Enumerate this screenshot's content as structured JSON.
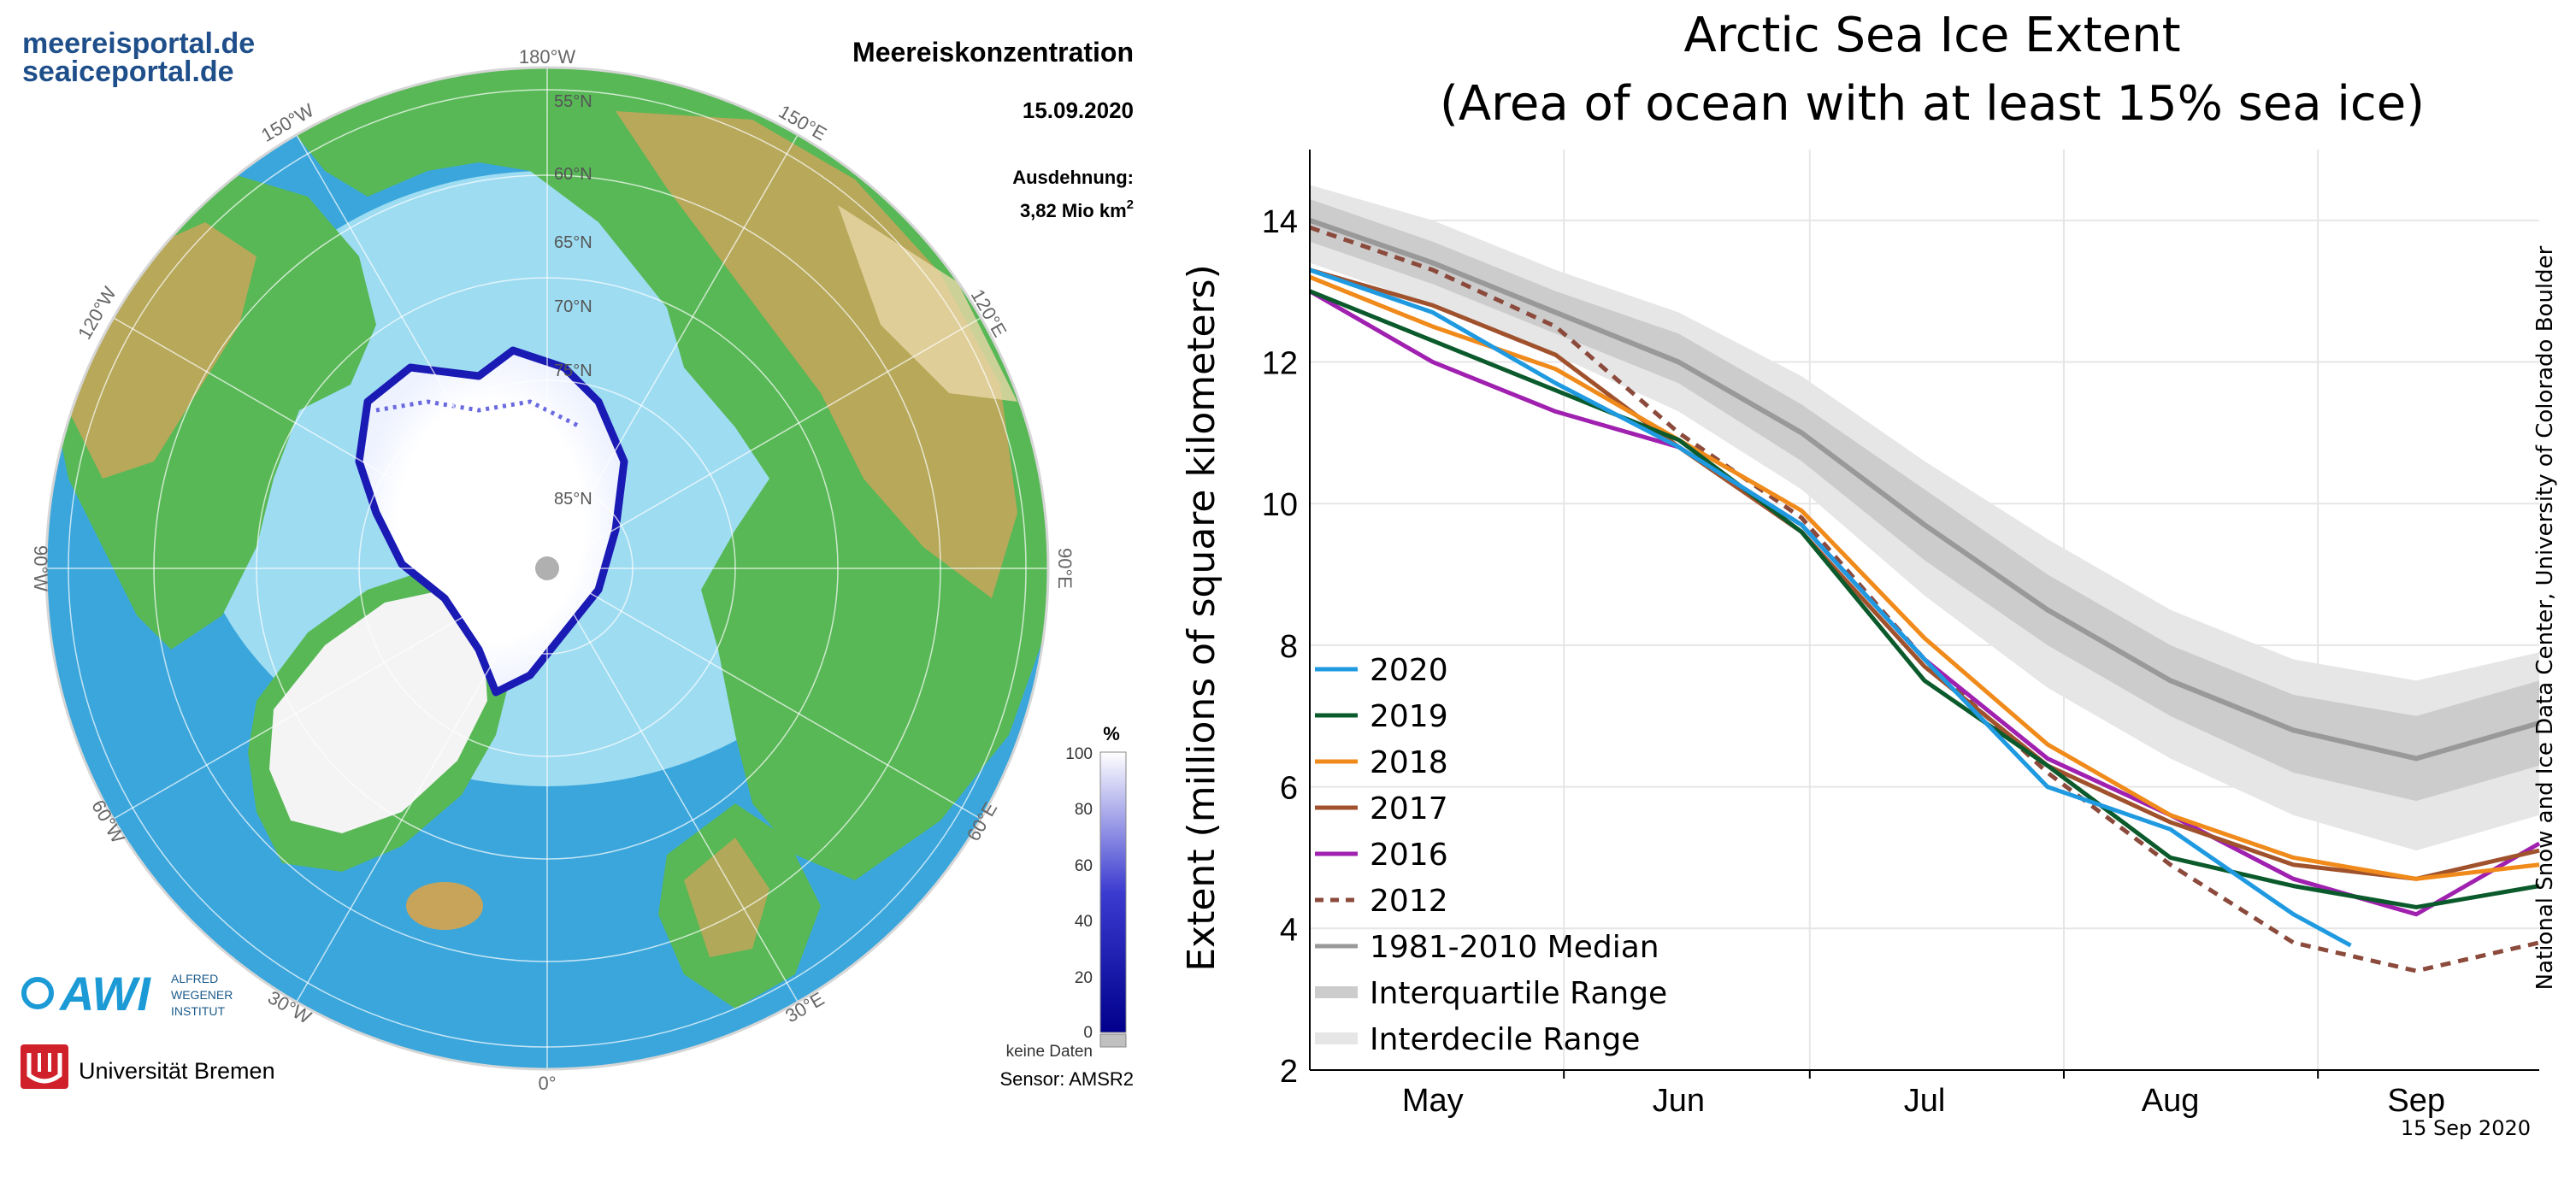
{
  "map": {
    "portal_line1": "meereisportal.de",
    "portal_line2": "seaiceportal.de",
    "title": "Meereiskonzentration",
    "date": "15.09.2020",
    "extent_label": "Ausdehnung:",
    "extent_value": "3,82 Mio km",
    "extent_unit_sup": "2",
    "longitudes": [
      "180°W",
      "150°E",
      "120°E",
      "90°E",
      "60°E",
      "30°E",
      "0°",
      "30°W",
      "60°W",
      "90°W",
      "120°W",
      "150°W"
    ],
    "latitudes": [
      "55°N",
      "60°N",
      "65°N",
      "70°N",
      "75°N",
      "85°N"
    ],
    "colorbar": {
      "unit": "%",
      "ticks": [
        "100",
        "80",
        "60",
        "40",
        "20",
        "0"
      ],
      "no_data": "keine Daten",
      "color_top": "#ffffff",
      "color_bottom": "#00008c"
    },
    "awi_lines": [
      "ALFRED",
      "WEGENER",
      "INSTITUT"
    ],
    "uni": "Universität Bremen",
    "sensor": "Sensor: AMSR2",
    "colors": {
      "ocean_deep": "#3aa6dc",
      "ocean_shelf": "#9edcf2",
      "land_low": "#58b856",
      "land_high": "#c8a45a",
      "ice": "#ffffff",
      "ice_edge": "#1a1ab4"
    }
  },
  "chart_data": {
    "type": "line",
    "title_line1": "Arctic Sea Ice Extent",
    "title_line2": "(Area of ocean with at least 15% sea ice)",
    "ylabel": "Extent (millions of square kilometers)",
    "ylim": [
      2,
      15
    ],
    "yticks": [
      2,
      4,
      6,
      8,
      10,
      12,
      14
    ],
    "ytick_labels": [
      "2",
      "4",
      "6",
      "8",
      "10",
      "12",
      "14"
    ],
    "xlim": [
      0,
      150
    ],
    "month_labels": [
      "May",
      "Jun",
      "Jul",
      "Aug",
      "Sep"
    ],
    "month_label_pos": [
      15,
      45,
      75,
      105,
      135
    ],
    "month_boundaries": [
      31,
      61,
      92,
      123
    ],
    "date_note": "15 Sep 2020",
    "source": "National Snow and Ice Data Center, University of Colorado Boulder",
    "x": [
      0,
      15,
      30,
      45,
      60,
      75,
      90,
      105,
      120,
      135,
      150
    ],
    "series": [
      {
        "name": "2020",
        "color": "#1f9ae0",
        "dash": false,
        "values": [
          13.3,
          12.7,
          11.7,
          10.8,
          9.7,
          7.8,
          6.0,
          5.4,
          4.2,
          null,
          null
        ],
        "last": {
          "x": 127,
          "y": 3.76
        }
      },
      {
        "name": "2019",
        "color": "#0b5a2c",
        "dash": false,
        "values": [
          13.0,
          12.3,
          11.6,
          10.9,
          9.6,
          7.5,
          6.3,
          5.0,
          4.6,
          4.3,
          4.6
        ]
      },
      {
        "name": "2018",
        "color": "#f08a1a",
        "dash": false,
        "values": [
          13.2,
          12.5,
          11.9,
          10.9,
          9.9,
          8.1,
          6.6,
          5.6,
          5.0,
          4.7,
          4.9
        ]
      },
      {
        "name": "2017",
        "color": "#a0522d",
        "dash": false,
        "values": [
          13.3,
          12.8,
          12.1,
          10.8,
          9.6,
          7.7,
          6.3,
          5.5,
          4.9,
          4.7,
          5.1
        ]
      },
      {
        "name": "2016",
        "color": "#a020b0",
        "dash": false,
        "values": [
          13.0,
          12.0,
          11.3,
          10.8,
          9.7,
          7.8,
          6.4,
          5.6,
          4.7,
          4.2,
          5.2
        ]
      },
      {
        "name": "2012",
        "color": "#8b4a3c",
        "dash": true,
        "values": [
          13.9,
          13.3,
          12.5,
          11.0,
          9.8,
          7.8,
          6.2,
          4.9,
          3.8,
          3.4,
          3.8
        ]
      }
    ],
    "median": {
      "name": "1981-2010 Median",
      "color": "#999999",
      "values": [
        14.0,
        13.4,
        12.7,
        12.0,
        11.0,
        9.7,
        8.5,
        7.5,
        6.8,
        6.4,
        6.9
      ]
    },
    "interquartile": {
      "name": "Interquartile Range",
      "color": "#cccccc",
      "low": [
        13.7,
        13.1,
        12.4,
        11.7,
        10.6,
        9.2,
        8.0,
        7.0,
        6.2,
        5.8,
        6.3
      ],
      "high": [
        14.3,
        13.7,
        13.0,
        12.4,
        11.4,
        10.2,
        9.0,
        8.0,
        7.3,
        7.0,
        7.5
      ]
    },
    "interdecile": {
      "name": "Interdecile Range",
      "color": "#e6e6e6",
      "low": [
        13.4,
        12.8,
        12.1,
        11.3,
        10.2,
        8.7,
        7.4,
        6.4,
        5.6,
        5.1,
        5.6
      ],
      "high": [
        14.5,
        14.0,
        13.3,
        12.7,
        11.8,
        10.6,
        9.5,
        8.5,
        7.8,
        7.5,
        7.9
      ]
    }
  }
}
